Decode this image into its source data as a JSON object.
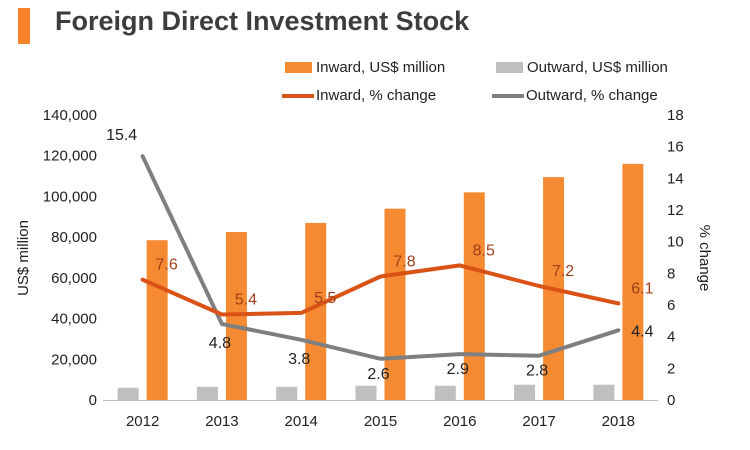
{
  "title": "Foreign Direct Investment Stock",
  "colors": {
    "accent": "#f5822a",
    "inward_bar": "#f58a32",
    "outward_bar": "#bfbfbf",
    "inward_line": "#d95316",
    "outward_line": "#7f7f7f",
    "inward_label": "#a0401a"
  },
  "legend": {
    "inward_bar": "Inward, US$ million",
    "outward_bar": "Outward, US$ million",
    "inward_line": "Inward, % change",
    "outward_line": "Outward, % change"
  },
  "chart_data": {
    "type": "bar",
    "categories": [
      "2012",
      "2013",
      "2014",
      "2015",
      "2016",
      "2017",
      "2018"
    ],
    "series": [
      {
        "name": "Inward, US$ million",
        "type": "bar",
        "axis": "left",
        "values": [
          78500,
          82500,
          87000,
          94000,
          102000,
          109500,
          116000
        ]
      },
      {
        "name": "Outward, US$ million",
        "type": "bar",
        "axis": "left",
        "values": [
          6000,
          6500,
          6500,
          7000,
          7000,
          7500,
          7500
        ]
      },
      {
        "name": "Inward, % change",
        "type": "line",
        "axis": "right",
        "values": [
          7.6,
          5.4,
          5.5,
          7.8,
          8.5,
          7.2,
          6.1
        ],
        "labels": [
          "7.6",
          "5.4",
          "5.5",
          "7.8",
          "8.5",
          "7.2",
          "6.1"
        ]
      },
      {
        "name": "Outward, % change",
        "type": "line",
        "axis": "right",
        "values": [
          15.4,
          4.8,
          3.8,
          2.6,
          2.9,
          2.8,
          4.4
        ],
        "labels": [
          "15.4",
          "4.8",
          "3.8",
          "2.6",
          "2.9",
          "2.8",
          "4.4"
        ]
      }
    ],
    "ylabel": "US$ million",
    "y2label": "% change",
    "ylim": [
      0,
      140000
    ],
    "y2lim": [
      0,
      18
    ],
    "yticks": [
      "0",
      "20,000",
      "40,000",
      "60,000",
      "80,000",
      "100,000",
      "120,000",
      "140,000"
    ],
    "y2ticks": [
      "0",
      "2",
      "4",
      "6",
      "8",
      "10",
      "12",
      "14",
      "16",
      "18"
    ],
    "grid": false,
    "legend_position": "top"
  }
}
